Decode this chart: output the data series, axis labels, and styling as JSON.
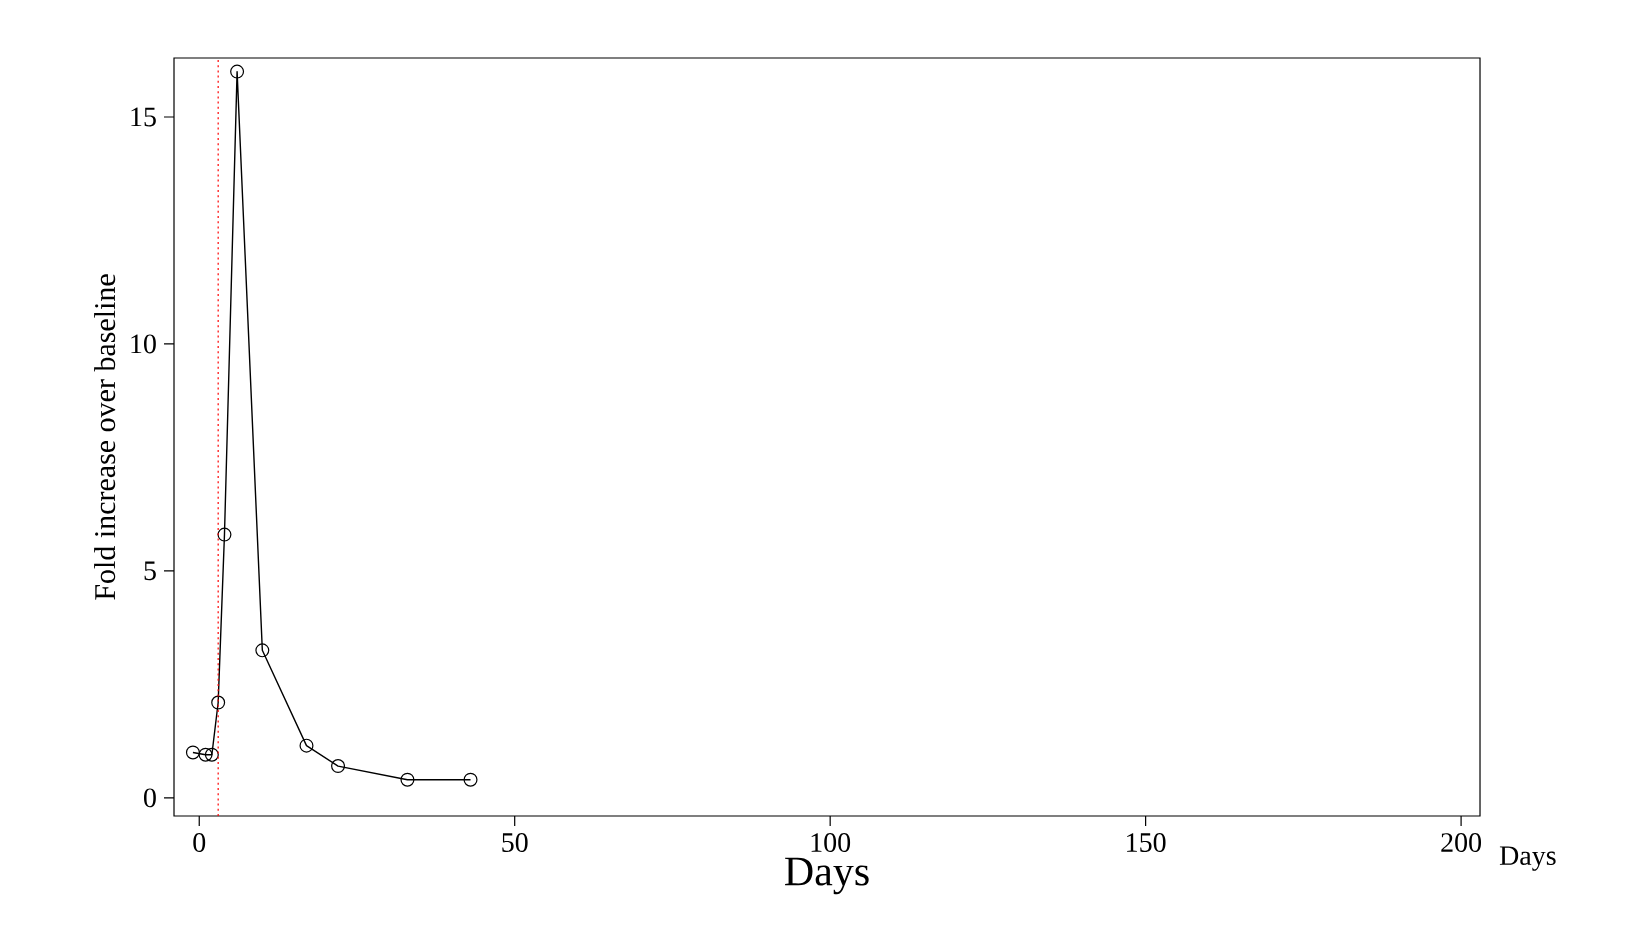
{
  "chart_data": {
    "type": "line",
    "xlabel": "Days",
    "ylabel": "Fold increase over baseline",
    "x": [
      -1,
      1,
      2,
      3,
      4,
      6,
      10,
      17,
      22,
      33,
      43
    ],
    "series": [
      {
        "color": "#000000",
        "values": [
          1.0,
          0.95,
          0.95,
          2.1,
          5.8,
          16.0,
          3.25,
          1.15,
          0.7,
          0.4,
          0.4
        ]
      }
    ],
    "xlim": [
      -4,
      203
    ],
    "ylim": [
      -0.4,
      16.3
    ],
    "xticks": [
      0,
      50,
      100,
      150,
      200
    ],
    "yticks": [
      0,
      5,
      10,
      15
    ],
    "marker": "circle",
    "line_style": "solid",
    "ref_lines": [
      {
        "axis": "x",
        "value": 3,
        "color": "#ff0000",
        "line_style": "dotted"
      }
    ],
    "annotations": [
      "Days"
    ]
  }
}
